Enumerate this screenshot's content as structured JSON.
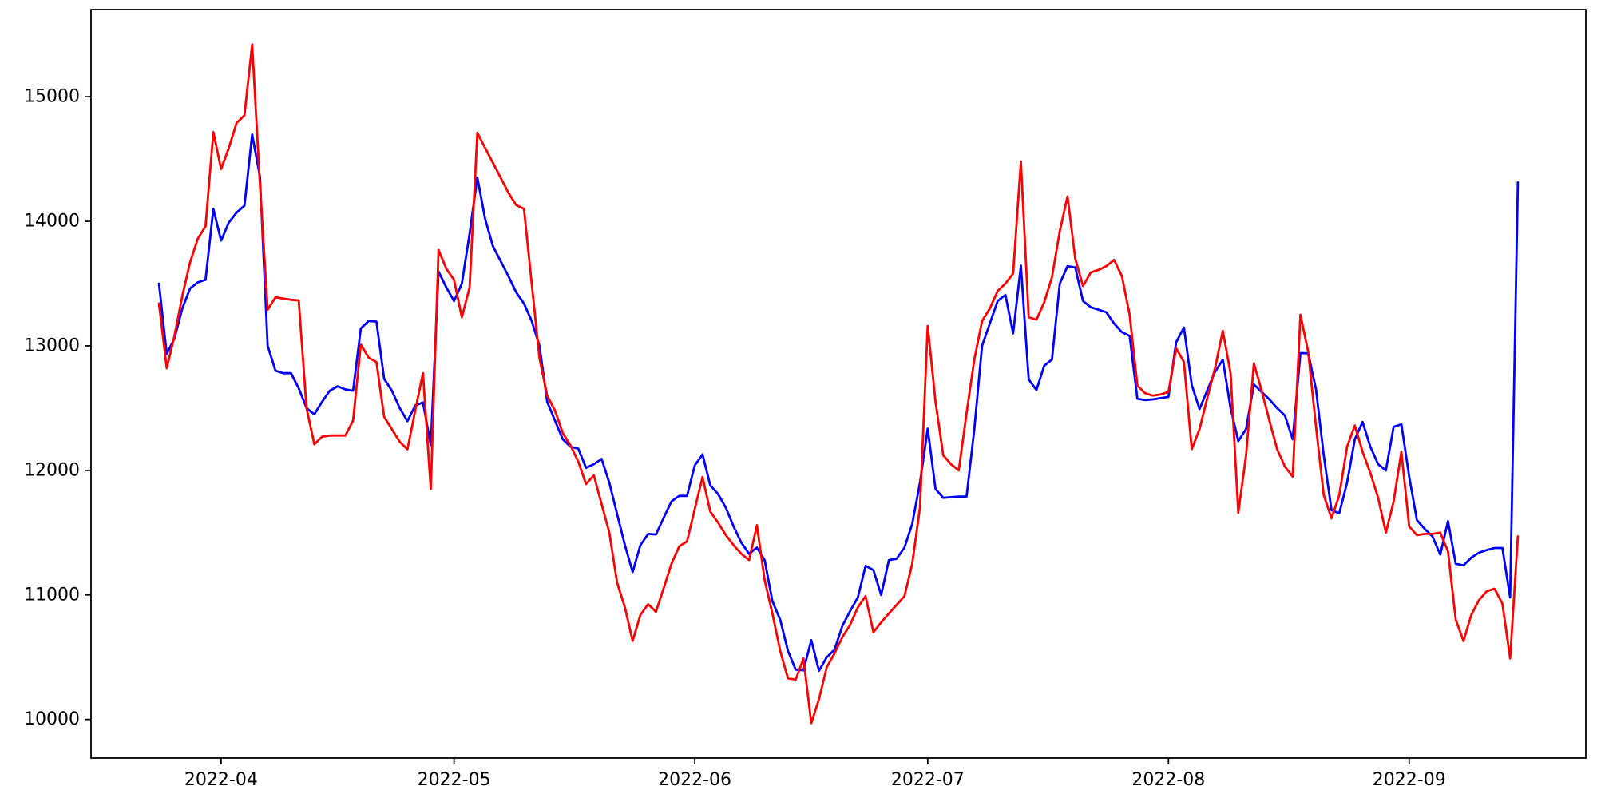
{
  "figure": {
    "background": "#ffffff",
    "axes_color": "#000000",
    "tick_label_color": "#000000"
  },
  "chart_data": {
    "type": "line",
    "title": "",
    "xlabel": "",
    "ylabel": "",
    "grid": false,
    "legend": null,
    "ylim": [
      9690,
      15700
    ],
    "yticks": [
      10000,
      11000,
      12000,
      13000,
      14000,
      15000
    ],
    "xticks": [
      {
        "label": "2022-04",
        "date": "2022-04-01"
      },
      {
        "label": "2022-05",
        "date": "2022-05-01"
      },
      {
        "label": "2022-06",
        "date": "2022-06-01"
      },
      {
        "label": "2022-07",
        "date": "2022-07-01"
      },
      {
        "label": "2022-08",
        "date": "2022-08-01"
      },
      {
        "label": "2022-09",
        "date": "2022-09-01"
      }
    ],
    "x": [
      "2022-03-24",
      "2022-03-25",
      "2022-03-26",
      "2022-03-27",
      "2022-03-28",
      "2022-03-29",
      "2022-03-30",
      "2022-03-31",
      "2022-04-01",
      "2022-04-02",
      "2022-04-03",
      "2022-04-04",
      "2022-04-05",
      "2022-04-06",
      "2022-04-07",
      "2022-04-08",
      "2022-04-09",
      "2022-04-10",
      "2022-04-11",
      "2022-04-12",
      "2022-04-13",
      "2022-04-14",
      "2022-04-15",
      "2022-04-16",
      "2022-04-17",
      "2022-04-18",
      "2022-04-19",
      "2022-04-20",
      "2022-04-21",
      "2022-04-22",
      "2022-04-23",
      "2022-04-24",
      "2022-04-25",
      "2022-04-26",
      "2022-04-27",
      "2022-04-28",
      "2022-04-29",
      "2022-04-30",
      "2022-05-01",
      "2022-05-02",
      "2022-05-03",
      "2022-05-04",
      "2022-05-05",
      "2022-05-06",
      "2022-05-07",
      "2022-05-08",
      "2022-05-09",
      "2022-05-10",
      "2022-05-11",
      "2022-05-12",
      "2022-05-13",
      "2022-05-14",
      "2022-05-15",
      "2022-05-16",
      "2022-05-17",
      "2022-05-18",
      "2022-05-19",
      "2022-05-20",
      "2022-05-21",
      "2022-05-22",
      "2022-05-23",
      "2022-05-24",
      "2022-05-25",
      "2022-05-26",
      "2022-05-27",
      "2022-05-28",
      "2022-05-29",
      "2022-05-30",
      "2022-05-31",
      "2022-06-01",
      "2022-06-02",
      "2022-06-03",
      "2022-06-04",
      "2022-06-05",
      "2022-06-06",
      "2022-06-07",
      "2022-06-08",
      "2022-06-09",
      "2022-06-10",
      "2022-06-11",
      "2022-06-12",
      "2022-06-13",
      "2022-06-14",
      "2022-06-15",
      "2022-06-16",
      "2022-06-17",
      "2022-06-18",
      "2022-06-19",
      "2022-06-20",
      "2022-06-21",
      "2022-06-22",
      "2022-06-23",
      "2022-06-24",
      "2022-06-25",
      "2022-06-26",
      "2022-06-27",
      "2022-06-28",
      "2022-06-29",
      "2022-06-30",
      "2022-07-01",
      "2022-07-02",
      "2022-07-03",
      "2022-07-04",
      "2022-07-05",
      "2022-07-06",
      "2022-07-07",
      "2022-07-08",
      "2022-07-09",
      "2022-07-10",
      "2022-07-11",
      "2022-07-12",
      "2022-07-13",
      "2022-07-14",
      "2022-07-15",
      "2022-07-16",
      "2022-07-17",
      "2022-07-18",
      "2022-07-19",
      "2022-07-20",
      "2022-07-21",
      "2022-07-22",
      "2022-07-23",
      "2022-07-24",
      "2022-07-25",
      "2022-07-26",
      "2022-07-27",
      "2022-07-28",
      "2022-07-29",
      "2022-07-30",
      "2022-07-31",
      "2022-08-01",
      "2022-08-02",
      "2022-08-03",
      "2022-08-04",
      "2022-08-05",
      "2022-08-06",
      "2022-08-07",
      "2022-08-08",
      "2022-08-09",
      "2022-08-10",
      "2022-08-11",
      "2022-08-12",
      "2022-08-13",
      "2022-08-14",
      "2022-08-15",
      "2022-08-16",
      "2022-08-17",
      "2022-08-18",
      "2022-08-19",
      "2022-08-20",
      "2022-08-21",
      "2022-08-22",
      "2022-08-23",
      "2022-08-24",
      "2022-08-25",
      "2022-08-26",
      "2022-08-27",
      "2022-08-28",
      "2022-08-29",
      "2022-08-30",
      "2022-08-31",
      "2022-09-01",
      "2022-09-02",
      "2022-09-03",
      "2022-09-04",
      "2022-09-05",
      "2022-09-06",
      "2022-09-07",
      "2022-09-08",
      "2022-09-09",
      "2022-09-10",
      "2022-09-11",
      "2022-09-12",
      "2022-09-13",
      "2022-09-14",
      "2022-09-15"
    ],
    "series": [
      {
        "name": "blue-series",
        "color": "#0000ff",
        "values": [
          13500,
          12935,
          13060,
          13300,
          13460,
          13510,
          13530,
          14100,
          13845,
          13990,
          14070,
          14125,
          14697,
          14360,
          13000,
          12800,
          12780,
          12780,
          12660,
          12500,
          12450,
          12550,
          12640,
          12675,
          12650,
          12640,
          13140,
          13200,
          13195,
          12735,
          12640,
          12500,
          12395,
          12520,
          12546,
          12203,
          13597,
          13470,
          13360,
          13500,
          13900,
          14352,
          14020,
          13800,
          13680,
          13560,
          13430,
          13340,
          13200,
          13000,
          12550,
          12400,
          12250,
          12190,
          12175,
          12020,
          12050,
          12092,
          11900,
          11650,
          11400,
          11184,
          11400,
          11490,
          11485,
          11620,
          11750,
          11795,
          11795,
          12040,
          12128,
          11880,
          11810,
          11700,
          11550,
          11420,
          11330,
          11380,
          11280,
          10950,
          10800,
          10550,
          10400,
          10395,
          10637,
          10391,
          10500,
          10560,
          10750,
          10870,
          10980,
          11234,
          11200,
          11000,
          11280,
          11290,
          11380,
          11570,
          11900,
          12336,
          11850,
          11780,
          11785,
          11790,
          11790,
          12332,
          13000,
          13180,
          13360,
          13409,
          13100,
          13644,
          12730,
          12645,
          12840,
          12890,
          13500,
          13640,
          13630,
          13360,
          13310,
          13290,
          13270,
          13180,
          13110,
          13080,
          12575,
          12565,
          12570,
          12580,
          12590,
          13030,
          13147,
          12685,
          12492,
          12643,
          12790,
          12889,
          12500,
          12235,
          12332,
          12690,
          12630,
          12570,
          12500,
          12440,
          12250,
          12942,
          12940,
          12650,
          12120,
          11680,
          11656,
          11900,
          12250,
          12389,
          12190,
          12050,
          12000,
          12350,
          12370,
          11950,
          11600,
          11530,
          11470,
          11324,
          11592,
          11250,
          11237,
          11300,
          11340,
          11360,
          11377,
          11377,
          10980,
          14312
        ]
      },
      {
        "name": "red-series",
        "color": "#ff0000",
        "values": [
          13340,
          12820,
          13080,
          13400,
          13670,
          13860,
          13960,
          14716,
          14420,
          14590,
          14790,
          14850,
          15420,
          14300,
          13290,
          13390,
          13380,
          13370,
          13365,
          12500,
          12210,
          12270,
          12280,
          12280,
          12280,
          12400,
          13010,
          12905,
          12870,
          12430,
          12330,
          12230,
          12170,
          12480,
          12780,
          11850,
          13770,
          13620,
          13530,
          13230,
          13470,
          14710,
          14590,
          14470,
          14350,
          14230,
          14130,
          14100,
          13500,
          12900,
          12600,
          12480,
          12300,
          12200,
          12070,
          11890,
          11960,
          11730,
          11500,
          11100,
          10900,
          10630,
          10840,
          10925,
          10865,
          11055,
          11250,
          11390,
          11430,
          11690,
          11946,
          11670,
          11580,
          11480,
          11400,
          11330,
          11280,
          11560,
          11120,
          10850,
          10550,
          10330,
          10320,
          10490,
          9970,
          10165,
          10420,
          10530,
          10660,
          10760,
          10900,
          10990,
          10700,
          10780,
          10850,
          10920,
          10990,
          11250,
          11700,
          13160,
          12550,
          12120,
          12050,
          12000,
          12460,
          12890,
          13200,
          13300,
          13440,
          13500,
          13580,
          14480,
          13230,
          13210,
          13350,
          13550,
          13920,
          14200,
          13700,
          13480,
          13590,
          13610,
          13640,
          13690,
          13560,
          13250,
          12680,
          12620,
          12600,
          12610,
          12630,
          12980,
          12870,
          12170,
          12330,
          12580,
          12820,
          13120,
          12780,
          11660,
          12120,
          12860,
          12640,
          12400,
          12170,
          12030,
          11950,
          13250,
          12950,
          12350,
          11800,
          11615,
          11800,
          12190,
          12360,
          12150,
          11980,
          11780,
          11500,
          11750,
          12150,
          11550,
          11480,
          11490,
          11490,
          11500,
          11350,
          10800,
          10630,
          10840,
          10960,
          11030,
          11050,
          10930,
          10490,
          11470
        ]
      }
    ]
  }
}
